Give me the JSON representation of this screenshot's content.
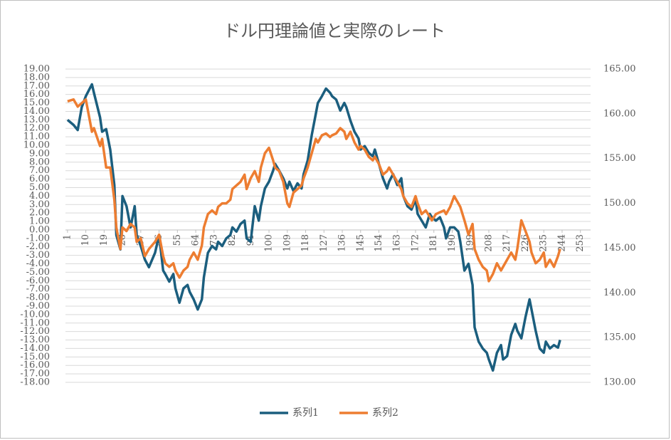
{
  "chart_data": {
    "type": "line",
    "title": "ドル円理論値と実際のレート",
    "x": [
      1,
      4,
      6,
      8,
      10,
      13,
      14,
      17,
      18,
      20,
      22,
      24,
      25,
      27,
      28,
      30,
      32,
      34,
      35,
      37,
      39,
      41,
      44,
      46,
      48,
      49,
      51,
      53,
      54,
      56,
      58,
      60,
      61,
      63,
      65,
      67,
      68,
      70,
      72,
      74,
      75,
      77,
      79,
      81,
      82,
      84,
      86,
      88,
      89,
      91,
      93,
      95,
      96,
      98,
      100,
      102,
      103,
      105,
      107,
      109,
      110,
      112,
      114,
      116,
      117,
      119,
      121,
      123,
      124,
      126,
      128,
      130,
      131,
      133,
      135,
      137,
      138,
      140,
      142,
      144,
      145,
      147,
      149,
      151,
      152,
      154,
      156,
      158,
      159,
      161,
      163,
      165,
      166,
      168,
      170,
      172,
      173,
      175,
      177,
      179,
      180,
      182,
      184,
      186,
      187,
      189,
      191,
      193,
      194,
      196,
      198,
      200,
      201,
      203,
      205,
      207,
      208,
      210,
      212,
      214,
      215,
      217,
      219,
      221,
      222,
      224,
      226,
      228,
      229,
      231,
      233,
      235,
      236,
      238,
      240,
      242,
      243
    ],
    "series": [
      {
        "name": "系列1",
        "color": "#1b5e7e",
        "values": [
          13.0,
          12.4,
          11.8,
          14.5,
          15.8,
          17.2,
          16.2,
          13.3,
          11.6,
          11.9,
          9.5,
          5.3,
          -0.6,
          -2.3,
          4.0,
          2.8,
          0.3,
          2.8,
          -0.6,
          -1.9,
          -3.5,
          -4.4,
          -2.7,
          -0.6,
          -4.8,
          -5.2,
          -6.1,
          -5.2,
          -6.9,
          -8.6,
          -6.9,
          -6.5,
          -7.3,
          -8.2,
          -9.4,
          -8.2,
          -5.6,
          -2.7,
          -1.9,
          -2.3,
          -1.4,
          -1.9,
          -1.0,
          -0.6,
          0.3,
          -0.2,
          0.7,
          1.1,
          -1.0,
          -1.4,
          2.8,
          1.1,
          2.8,
          4.9,
          5.7,
          7.0,
          7.8,
          7.0,
          6.1,
          4.9,
          5.7,
          4.6,
          5.5,
          4.9,
          6.6,
          8.2,
          11.2,
          13.7,
          15.0,
          15.8,
          16.7,
          16.2,
          15.8,
          15.4,
          14.1,
          15.0,
          14.5,
          12.9,
          11.6,
          10.8,
          9.5,
          9.9,
          9.1,
          8.7,
          9.5,
          7.8,
          6.1,
          4.9,
          5.7,
          6.6,
          5.3,
          6.1,
          4.0,
          2.8,
          2.4,
          3.6,
          1.9,
          1.1,
          0.3,
          1.9,
          1.5,
          1.1,
          1.5,
          0.3,
          -1.0,
          0.3,
          0.3,
          -0.2,
          -1.4,
          -4.8,
          -4.0,
          -6.5,
          -11.5,
          -13.2,
          -14.0,
          -14.5,
          -15.3,
          -16.6,
          -14.5,
          -13.6,
          -15.3,
          -14.9,
          -12.4,
          -11.1,
          -11.9,
          -12.8,
          -10.3,
          -8.2,
          -9.4,
          -11.9,
          -14.0,
          -14.5,
          -13.2,
          -14.0,
          -13.6,
          -13.9,
          -13.0
        ]
      },
      {
        "name": "系列2",
        "color": "#ed7d31",
        "axis": "y2",
        "values": [
          161.4,
          161.6,
          160.8,
          161.2,
          161.6,
          158.0,
          158.4,
          156.4,
          157.2,
          154.0,
          154.0,
          150.4,
          147.3,
          144.9,
          147.3,
          146.9,
          147.7,
          147.3,
          145.7,
          146.1,
          144.1,
          144.9,
          145.7,
          146.5,
          144.1,
          143.3,
          142.9,
          143.3,
          142.5,
          141.7,
          142.5,
          142.9,
          143.7,
          144.5,
          143.7,
          145.3,
          147.3,
          148.8,
          149.2,
          148.8,
          149.6,
          150.0,
          150.0,
          150.4,
          151.6,
          152.0,
          152.4,
          153.2,
          151.6,
          152.8,
          153.6,
          152.4,
          154.0,
          155.6,
          156.2,
          154.8,
          154.0,
          153.6,
          152.4,
          150.0,
          149.6,
          151.2,
          151.6,
          152.0,
          152.8,
          154.0,
          155.6,
          157.2,
          156.8,
          157.6,
          157.8,
          157.4,
          157.6,
          157.8,
          158.4,
          158.0,
          157.2,
          158.0,
          156.8,
          156.0,
          156.4,
          156.0,
          155.2,
          154.8,
          155.2,
          154.4,
          153.2,
          153.6,
          154.0,
          153.2,
          152.4,
          151.6,
          150.8,
          150.0,
          149.6,
          150.8,
          150.0,
          148.8,
          149.2,
          148.5,
          148.1,
          148.8,
          149.0,
          149.2,
          148.8,
          149.6,
          150.8,
          150.0,
          149.6,
          148.1,
          146.5,
          147.7,
          144.9,
          143.7,
          142.9,
          142.5,
          141.3,
          142.1,
          143.3,
          142.5,
          142.9,
          143.7,
          144.5,
          143.7,
          144.9,
          148.1,
          146.9,
          145.7,
          144.5,
          143.3,
          143.7,
          144.5,
          142.9,
          143.7,
          142.9,
          144.1,
          144.9
        ]
      }
    ],
    "xlim": [
      0,
      258
    ],
    "xticks": [
      1,
      10,
      19,
      28,
      37,
      46,
      55,
      64,
      73,
      82,
      91,
      100,
      109,
      118,
      127,
      136,
      145,
      154,
      163,
      172,
      181,
      190,
      199,
      208,
      217,
      226,
      235,
      244,
      253
    ],
    "ylim": [
      -18,
      19
    ],
    "yticks": [
      {
        "value": 19,
        "label": "19.00"
      },
      {
        "value": 18,
        "label": "18.00"
      },
      {
        "value": 17,
        "label": "17.00"
      },
      {
        "value": 16,
        "label": "16.00"
      },
      {
        "value": 15,
        "label": "15.00"
      },
      {
        "value": 14,
        "label": "14.00"
      },
      {
        "value": 13,
        "label": "13.00"
      },
      {
        "value": 12,
        "label": "12.00"
      },
      {
        "value": 11,
        "label": "11.00"
      },
      {
        "value": 10,
        "label": "10.00"
      },
      {
        "value": 9,
        "label": "9.00"
      },
      {
        "value": 8,
        "label": "8.00"
      },
      {
        "value": 7,
        "label": "7.00"
      },
      {
        "value": 6,
        "label": "6.00"
      },
      {
        "value": 5,
        "label": "5.00"
      },
      {
        "value": 4,
        "label": "4.00"
      },
      {
        "value": 3,
        "label": "3.00"
      },
      {
        "value": 2,
        "label": "2.00"
      },
      {
        "value": 1,
        "label": "1.00"
      },
      {
        "value": 0,
        "label": "0.00"
      },
      {
        "value": -1,
        "label": "-1.00"
      },
      {
        "value": -2,
        "label": "-2.00"
      },
      {
        "value": -3,
        "label": "-3.00"
      },
      {
        "value": -4,
        "label": "-4.00"
      },
      {
        "value": -5,
        "label": "-5.00"
      },
      {
        "value": -6,
        "label": "-6.00"
      },
      {
        "value": -7,
        "label": "-7.00"
      },
      {
        "value": -8,
        "label": "-8.00"
      },
      {
        "value": -9,
        "label": "-9.00"
      },
      {
        "value": -10,
        "label": "-10.00"
      },
      {
        "value": -11,
        "label": "-11.00"
      },
      {
        "value": -12,
        "label": "-12.00"
      },
      {
        "value": -13,
        "label": "-13.00"
      },
      {
        "value": -14,
        "label": "-14.00"
      },
      {
        "value": -15,
        "label": "-15.00"
      },
      {
        "value": -16,
        "label": "-16.00"
      },
      {
        "value": -17,
        "label": "-17.00"
      },
      {
        "value": -18,
        "label": "-18.00"
      }
    ],
    "y2lim": [
      130,
      165
    ],
    "y2ticks": [
      {
        "value": 130,
        "label": "130.00"
      },
      {
        "value": 135,
        "label": "135.00"
      },
      {
        "value": 140,
        "label": "140.00"
      },
      {
        "value": 145,
        "label": "145.00"
      },
      {
        "value": 150,
        "label": "150.00"
      },
      {
        "value": 155,
        "label": "155.00"
      },
      {
        "value": 160,
        "label": "160.00"
      },
      {
        "value": 165,
        "label": "165.00"
      }
    ],
    "grid": true,
    "legend": "bottom"
  }
}
